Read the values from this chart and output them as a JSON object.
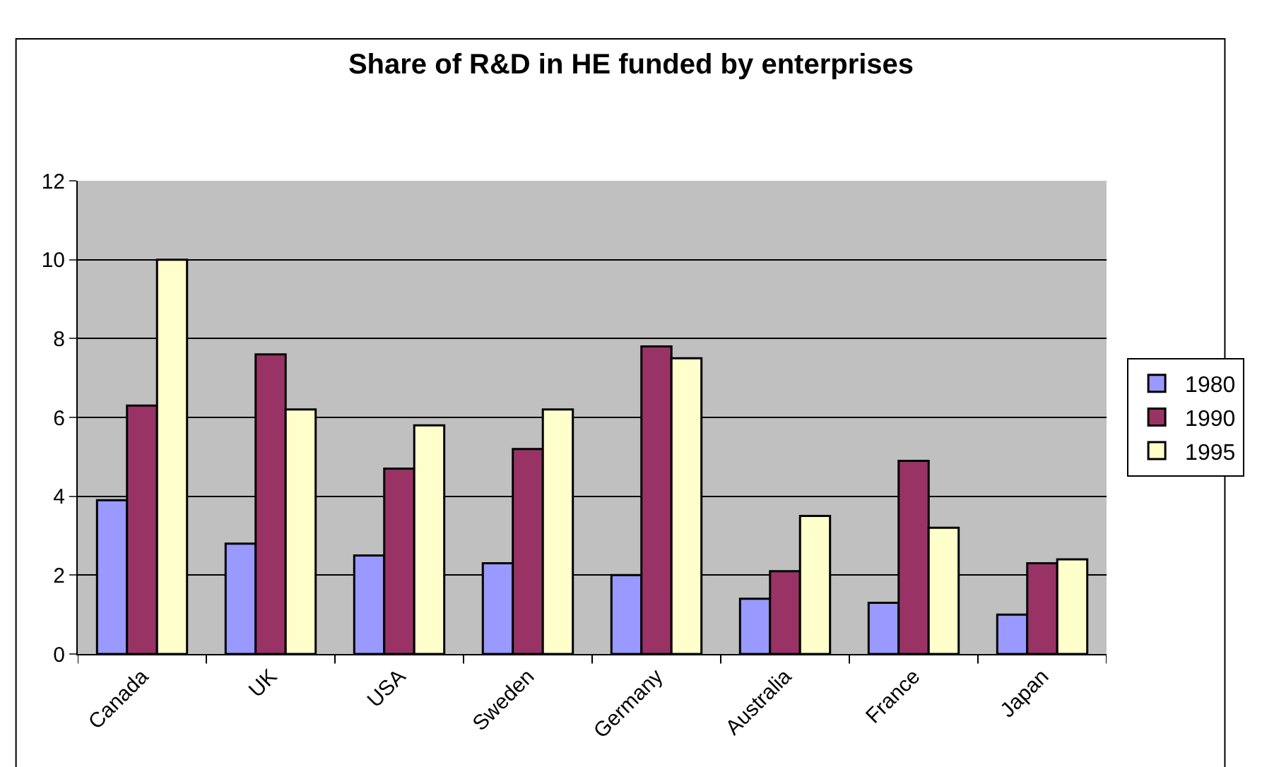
{
  "chart_data": {
    "type": "bar",
    "title": "Share of R&D in HE funded by enterprises",
    "categories": [
      "Canada",
      "UK",
      "USA",
      "Sweden",
      "Germany",
      "Australia",
      "France",
      "Japan"
    ],
    "series": [
      {
        "name": "1980",
        "color": "#9999ff",
        "values": [
          3.9,
          2.8,
          2.5,
          2.3,
          2.0,
          1.4,
          1.3,
          1.0
        ]
      },
      {
        "name": "1990",
        "color": "#993366",
        "values": [
          6.3,
          7.6,
          4.7,
          5.2,
          7.8,
          2.1,
          4.9,
          2.3
        ]
      },
      {
        "name": "1995",
        "color": "#ffffcc",
        "values": [
          10.0,
          6.2,
          5.8,
          6.2,
          7.5,
          3.5,
          3.2,
          2.4
        ]
      }
    ],
    "ylim": [
      0,
      12
    ],
    "yticks": [
      0,
      2,
      4,
      6,
      8,
      10,
      12
    ],
    "grid": "y",
    "legend": "right"
  }
}
